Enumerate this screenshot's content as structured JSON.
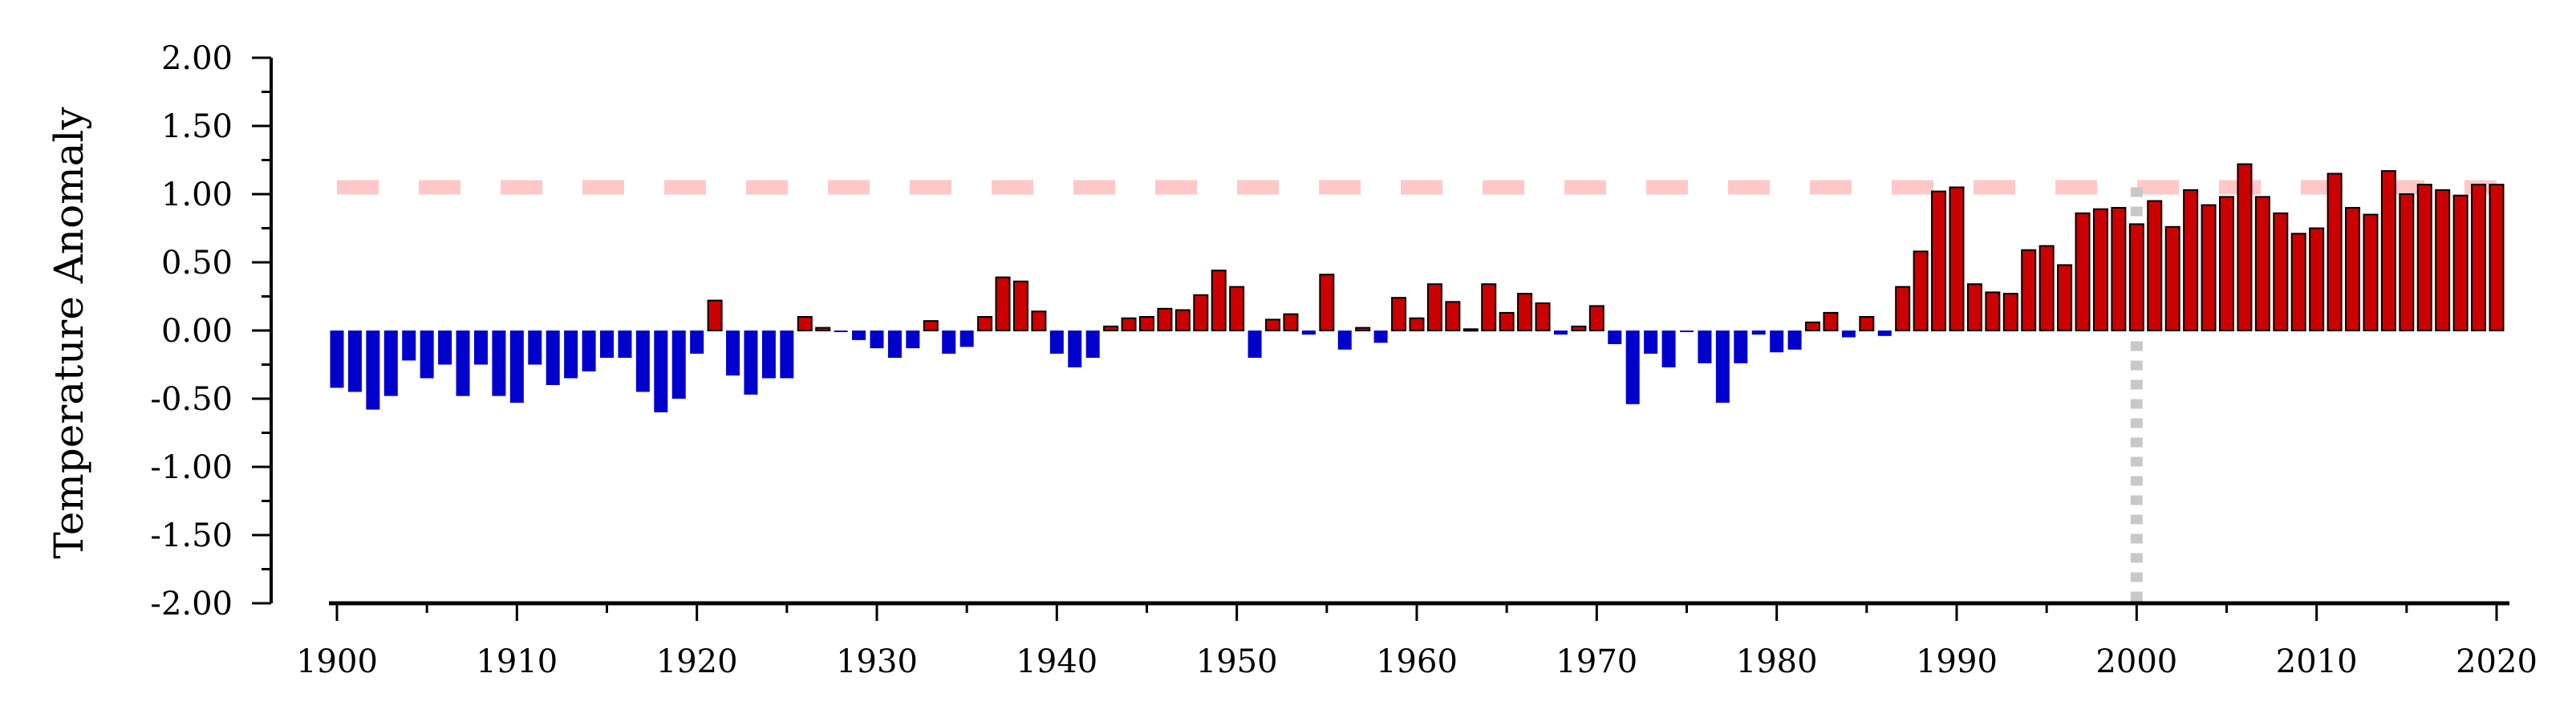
{
  "chart_data": {
    "type": "bar",
    "title": "",
    "xlabel": "",
    "ylabel": "Temperature Anomaly",
    "ylim": [
      -2.0,
      2.0
    ],
    "xlim": [
      1900,
      2020
    ],
    "y_ticks": [
      "2.00",
      "1.50",
      "1.00",
      "0.50",
      "0.00",
      "-0.50",
      "-1.00",
      "-1.50",
      "-2.00"
    ],
    "x_ticks": [
      "1900",
      "1910",
      "1920",
      "1930",
      "1940",
      "1950",
      "1960",
      "1970",
      "1980",
      "1990",
      "2000",
      "2010",
      "2020"
    ],
    "grid": false,
    "legend": "none",
    "colors": {
      "positive": "#cc0000",
      "negative": "#0000cc",
      "threshold_line": "#ffc8c8",
      "reference_line": "#c8c8c8"
    },
    "reference_lines": [
      {
        "orientation": "horizontal",
        "y": 1.05,
        "style": "dashed"
      },
      {
        "orientation": "vertical",
        "x": 2000,
        "y_from": -2.0,
        "y_to": 1.05,
        "style": "dotted"
      }
    ],
    "x": [
      1900,
      1901,
      1902,
      1903,
      1904,
      1905,
      1906,
      1907,
      1908,
      1909,
      1910,
      1911,
      1912,
      1913,
      1914,
      1915,
      1916,
      1917,
      1918,
      1919,
      1920,
      1921,
      1922,
      1923,
      1924,
      1925,
      1926,
      1927,
      1928,
      1929,
      1930,
      1931,
      1932,
      1933,
      1934,
      1935,
      1936,
      1937,
      1938,
      1939,
      1940,
      1941,
      1942,
      1943,
      1944,
      1945,
      1946,
      1947,
      1948,
      1949,
      1950,
      1951,
      1952,
      1953,
      1954,
      1955,
      1956,
      1957,
      1958,
      1959,
      1960,
      1961,
      1962,
      1963,
      1964,
      1965,
      1966,
      1967,
      1968,
      1969,
      1970,
      1971,
      1972,
      1973,
      1974,
      1975,
      1976,
      1977,
      1978,
      1979,
      1980,
      1981,
      1982,
      1983,
      1984,
      1985,
      1986,
      1987,
      1988,
      1989,
      1990,
      1991,
      1992,
      1993,
      1994,
      1995,
      1996,
      1997,
      1998,
      1999,
      2000,
      2001,
      2002,
      2003,
      2004,
      2005,
      2006,
      2007,
      2008,
      2009,
      2010,
      2011,
      2012,
      2013,
      2014,
      2015,
      2016,
      2017,
      2018,
      2019,
      2020
    ],
    "values": [
      -0.42,
      -0.45,
      -0.58,
      -0.48,
      -0.22,
      -0.35,
      -0.25,
      -0.48,
      -0.25,
      -0.48,
      -0.53,
      -0.25,
      -0.4,
      -0.35,
      -0.3,
      -0.2,
      -0.2,
      -0.45,
      -0.6,
      -0.5,
      -0.17,
      0.22,
      -0.33,
      -0.47,
      -0.35,
      -0.35,
      0.1,
      0.02,
      -0.01,
      -0.07,
      -0.13,
      -0.2,
      -0.13,
      0.07,
      -0.17,
      -0.12,
      0.1,
      0.39,
      0.36,
      0.14,
      -0.17,
      -0.27,
      -0.2,
      0.03,
      0.09,
      0.1,
      0.16,
      0.15,
      0.26,
      0.44,
      0.32,
      -0.2,
      0.08,
      0.12,
      -0.03,
      0.41,
      -0.14,
      0.02,
      -0.09,
      0.24,
      0.09,
      0.34,
      0.21,
      0.01,
      0.34,
      0.13,
      0.27,
      0.2,
      -0.03,
      0.03,
      0.18,
      -0.1,
      -0.54,
      -0.17,
      -0.27,
      -0.01,
      -0.24,
      -0.53,
      -0.24,
      -0.03,
      -0.16,
      -0.14,
      0.06,
      0.13,
      -0.05,
      0.1,
      -0.04,
      0.32,
      0.58,
      1.02,
      1.05,
      0.34,
      0.28,
      0.27,
      0.59,
      0.62,
      0.48,
      0.86,
      0.89,
      0.9,
      0.78,
      0.95,
      0.76,
      1.03,
      0.92,
      0.98,
      1.22,
      0.98,
      0.86,
      0.71,
      0.75,
      1.15,
      0.9,
      0.85,
      1.17,
      1.0,
      1.07,
      1.03,
      0.99,
      1.07,
      1.07
    ]
  }
}
